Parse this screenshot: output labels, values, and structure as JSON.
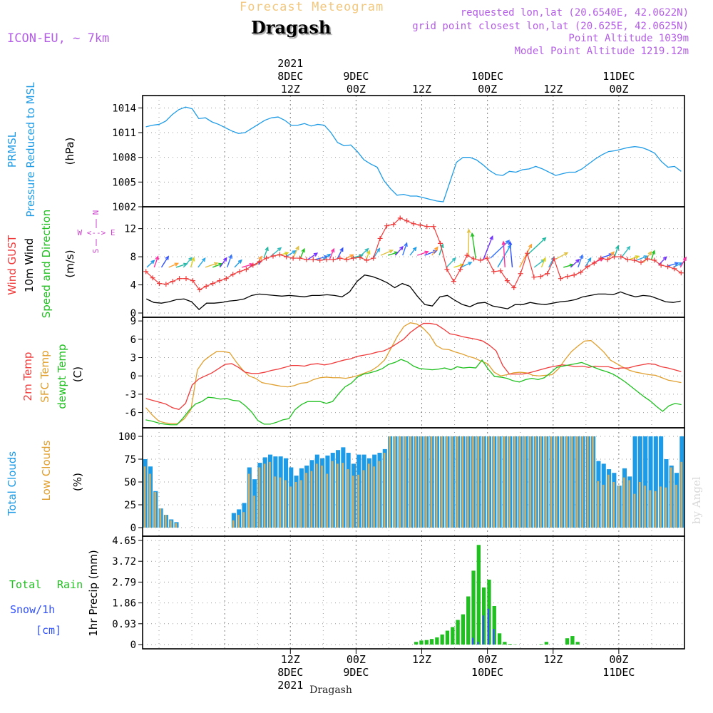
{
  "header": {
    "subtitle": "Forecast Meteogram",
    "title": "Dragash",
    "model": "ICON-EU, ~ 7km",
    "requested": "requested lon,lat (20.6540E, 42.0622N)",
    "grid_point": "grid point closest lon,lat (20.625E, 42.0625N)",
    "point_altitude": "Point Altitude 1039m",
    "model_altitude": "Model Point Altitude 1219.12m",
    "credit": "by Angel",
    "footer_title": "Dragash"
  },
  "colors": {
    "prmsl": "#1e9be6",
    "wind10": "#000000",
    "gust": "#ef3b3b",
    "t2m": "#ef3b3b",
    "sfc": "#e0a030",
    "dew": "#20c020",
    "total_clouds": "#1e9be6",
    "low_clouds": "#d8ad5b",
    "rain": "#20c020",
    "snow": "#3050ff",
    "title": "#f2c77e",
    "meta": "#b45ee6",
    "compass": "#cc44cc"
  },
  "chart_data": {
    "x_range": [
      -15,
      84
    ],
    "time_axis": {
      "unit": "hours from 2021-12-08 00Z",
      "top_ticks": [
        {
          "h": 12,
          "lines": [
            "2021",
            "8DEC",
            "12Z"
          ]
        },
        {
          "h": 24,
          "lines": [
            "9DEC",
            "00Z"
          ]
        },
        {
          "h": 36,
          "lines": [
            "12Z"
          ]
        },
        {
          "h": 48,
          "lines": [
            "10DEC",
            "00Z"
          ]
        },
        {
          "h": 60,
          "lines": [
            "12Z"
          ]
        },
        {
          "h": 72,
          "lines": [
            "11DEC",
            "00Z"
          ]
        }
      ],
      "bottom_ticks": [
        {
          "h": 12,
          "lines": [
            "12Z",
            "8DEC",
            "2021"
          ]
        },
        {
          "h": 24,
          "lines": [
            "00Z",
            "9DEC"
          ]
        },
        {
          "h": 36,
          "lines": [
            "12Z"
          ]
        },
        {
          "h": 48,
          "lines": [
            "00Z",
            "10DEC"
          ]
        },
        {
          "h": 60,
          "lines": [
            "12Z"
          ]
        },
        {
          "h": 72,
          "lines": [
            "00Z",
            "11DEC"
          ]
        }
      ]
    },
    "pressure": {
      "type": "line",
      "labels": [
        "PRMSL",
        "Pressure Reduced to MSL"
      ],
      "unit": "(hPa)",
      "yticks": [
        "1014",
        "1011",
        "1008",
        "1005",
        "1002"
      ],
      "ylim": [
        1002,
        1015.5
      ],
      "series": [
        [
          1011.7,
          1011.9,
          1012.0,
          1012.4,
          1013.2,
          1013.8,
          1014.1,
          1013.9,
          1012.7,
          1012.8,
          1012.3,
          1012.0,
          1011.6,
          1011.2,
          1010.9,
          1011.0,
          1011.5,
          1012.0,
          1012.5,
          1012.8,
          1012.9,
          1012.5,
          1011.9,
          1011.9,
          1012.1,
          1011.8,
          1012.0,
          1011.9,
          1011.0,
          1009.8,
          1009.4,
          1009.5,
          1008.7,
          1007.7,
          1007.2,
          1006.8,
          1005.2,
          1004.2,
          1003.4,
          1003.5,
          1003.3,
          1003.3,
          1003.1,
          1002.9,
          1002.7,
          1002.6,
          1005.0,
          1007.4,
          1008.0,
          1008.0,
          1007.7,
          1007.1,
          1006.4,
          1005.9,
          1005.8,
          1006.3,
          1006.2,
          1006.5,
          1006.6,
          1006.9,
          1006.6,
          1006.2,
          1005.8,
          1006.0,
          1006.2,
          1006.2,
          1006.6,
          1007.2,
          1007.8,
          1008.3,
          1008.7,
          1008.8,
          1009.0,
          1009.2,
          1009.3,
          1009.2,
          1008.9,
          1008.5,
          1007.5,
          1006.8,
          1006.9,
          1006.3
        ]
      ]
    },
    "wind": {
      "type": "line",
      "labels": [
        "Wind GUST",
        "10m Wind",
        "Speed and Direction"
      ],
      "unit": "(m/s)",
      "yticks": [
        "12",
        "8",
        "4",
        "0"
      ],
      "ylim": [
        0,
        14.5
      ],
      "compass": [
        "N",
        "W <--> E",
        "S"
      ],
      "gust": [
        5.9,
        5.0,
        4.2,
        4.1,
        4.5,
        4.9,
        4.9,
        4.6,
        3.3,
        3.8,
        4.2,
        4.6,
        4.9,
        5.5,
        5.9,
        6.2,
        6.8,
        7.3,
        7.8,
        8.1,
        8.3,
        8.0,
        7.8,
        7.8,
        7.6,
        7.6,
        7.5,
        7.6,
        7.6,
        7.8,
        7.6,
        7.8,
        7.9,
        7.5,
        7.8,
        10.6,
        12.4,
        12.6,
        13.5,
        13.1,
        12.7,
        12.5,
        12.3,
        12.3,
        9.9,
        6.2,
        4.5,
        6.2,
        8.2,
        7.7,
        7.5,
        7.8,
        5.9,
        6.0,
        4.6,
        3.6,
        5.6,
        8.5,
        5.1,
        5.2,
        5.6,
        7.7,
        4.9,
        5.2,
        5.4,
        5.8,
        6.6,
        7.1,
        7.8,
        7.6,
        8.0,
        8.0,
        7.6,
        7.5,
        7.2,
        7.7,
        7.5,
        6.8,
        6.6,
        6.3,
        5.7
      ],
      "speed": [
        2.0,
        1.5,
        1.4,
        1.6,
        1.9,
        2.0,
        1.6,
        0.5,
        1.4,
        1.4,
        1.5,
        1.7,
        1.8,
        2.0,
        2.5,
        2.7,
        2.6,
        2.5,
        2.4,
        2.5,
        2.4,
        2.3,
        2.5,
        2.5,
        2.6,
        2.5,
        2.3,
        3.0,
        4.5,
        5.4,
        5.2,
        4.8,
        4.3,
        3.6,
        4.2,
        3.8,
        2.4,
        1.2,
        1.0,
        2.3,
        2.5,
        1.8,
        1.2,
        0.9,
        1.4,
        1.5,
        1.0,
        0.8,
        0.6,
        1.2,
        1.2,
        1.5,
        1.3,
        1.2,
        1.4,
        1.6,
        1.7,
        1.9,
        2.3,
        2.5,
        2.7,
        2.7,
        2.6,
        3.0,
        2.6,
        2.3,
        2.5,
        2.4,
        2.0,
        1.6,
        1.5,
        1.7
      ]
    },
    "temperature": {
      "type": "line",
      "labels": [
        "2m Temp",
        "SFC Temp",
        "dewpt Temp"
      ],
      "unit": "(C)",
      "yticks": [
        "9",
        "6",
        "3",
        "0",
        "-3",
        "-6"
      ],
      "ylim": [
        -8.5,
        9.6
      ],
      "t2m": [
        -3.7,
        -4.0,
        -4.3,
        -4.6,
        -5.2,
        -5.5,
        -4.5,
        -1.5,
        -0.5,
        0.0,
        0.5,
        1.2,
        1.9,
        2.0,
        1.4,
        0.6,
        0.4,
        0.4,
        0.6,
        0.9,
        1.1,
        1.4,
        1.7,
        1.7,
        1.6,
        1.9,
        2.0,
        1.8,
        2.0,
        2.3,
        2.6,
        2.8,
        3.2,
        3.4,
        3.6,
        3.9,
        4.1,
        4.6,
        5.3,
        6.0,
        7.1,
        7.9,
        8.6,
        8.6,
        8.4,
        7.7,
        6.9,
        6.7,
        6.4,
        6.2,
        6.0,
        5.7,
        5.0,
        4.1,
        1.7,
        0.3,
        0.3,
        0.3,
        0.5,
        0.8,
        1.1,
        1.4,
        1.6,
        1.8,
        1.7,
        1.5,
        1.6,
        1.4,
        1.6,
        1.5,
        1.5,
        1.2,
        1.3,
        1.3,
        1.6,
        1.8,
        2.0,
        1.9,
        1.5,
        1.3,
        1.0,
        0.7
      ],
      "sfc": [
        -5.2,
        -6.4,
        -7.4,
        -7.7,
        -7.8,
        -7.8,
        -7.0,
        -5.5,
        1.0,
        2.5,
        3.3,
        4.0,
        4.0,
        3.8,
        2.3,
        1.0,
        0.0,
        -0.4,
        -1.1,
        -1.3,
        -1.5,
        -1.7,
        -1.8,
        -1.6,
        -1.2,
        -1.1,
        -0.6,
        -0.3,
        -0.2,
        -0.3,
        -0.3,
        -0.4,
        -0.2,
        0.1,
        0.5,
        0.9,
        1.6,
        2.6,
        4.5,
        6.5,
        8.1,
        8.7,
        8.5,
        7.8,
        6.7,
        5.0,
        4.4,
        4.3,
        3.9,
        3.6,
        3.2,
        2.9,
        2.4,
        2.0,
        0.6,
        0.0,
        0.2,
        0.5,
        0.6,
        0.5,
        0.1,
        0.0,
        0.1,
        0.2,
        1.2,
        2.7,
        4.0,
        4.9,
        5.7,
        5.8,
        4.9,
        3.9,
        2.6,
        2.0,
        1.4,
        0.9,
        0.6,
        0.4,
        0.2,
        0.1,
        -0.3,
        -0.7,
        -0.9,
        -1.1
      ],
      "dew": [
        -7.2,
        -7.4,
        -7.7,
        -7.9,
        -8.0,
        -8.0,
        -6.9,
        -5.6,
        -4.6,
        -4.2,
        -3.5,
        -3.6,
        -3.8,
        -3.7,
        -4.0,
        -4.1,
        -4.9,
        -5.9,
        -7.3,
        -7.9,
        -7.9,
        -7.6,
        -7.2,
        -7.0,
        -5.5,
        -4.7,
        -4.2,
        -4.2,
        -4.2,
        -4.5,
        -4.2,
        -2.9,
        -1.8,
        -1.2,
        -0.2,
        0.3,
        0.5,
        0.8,
        1.2,
        1.9,
        2.2,
        2.7,
        2.3,
        1.6,
        1.2,
        1.1,
        1.0,
        1.1,
        1.3,
        1.0,
        1.5,
        1.3,
        1.4,
        1.3,
        2.6,
        1.1,
        -0.1,
        -0.2,
        -0.4,
        -0.8,
        -1.0,
        -0.6,
        -0.4,
        -0.6,
        -0.3,
        0.5,
        1.4,
        1.6,
        1.8,
        2.0,
        2.2,
        1.8,
        1.4,
        1.0,
        0.7,
        0.3,
        -0.3,
        -1.0,
        -1.8,
        -2.6,
        -3.4,
        -4.1,
        -5.0,
        -5.8,
        -4.9,
        -4.5,
        -4.7
      ]
    },
    "clouds": {
      "type": "bar",
      "labels": [
        "Total Clouds",
        "Low Clouds"
      ],
      "unit": "(%)",
      "yticks": [
        "100",
        "75",
        "50",
        "25",
        "0"
      ],
      "ylim": [
        0,
        100
      ],
      "total": [
        75,
        67,
        40,
        21,
        14,
        9,
        6,
        0,
        0,
        0,
        0,
        0,
        0,
        0,
        0,
        0,
        0,
        16,
        20,
        27,
        66,
        53,
        71,
        77,
        80,
        78,
        78,
        76,
        66,
        57,
        65,
        68,
        74,
        80,
        76,
        79,
        82,
        85,
        88,
        82,
        70,
        80,
        80,
        76,
        80,
        82,
        86,
        100,
        100,
        100,
        100,
        100,
        100,
        100,
        100,
        100,
        100,
        100,
        100,
        100,
        100,
        100,
        100,
        100,
        100,
        100,
        100,
        100,
        100,
        100,
        100,
        100,
        100,
        100,
        100,
        100,
        100,
        100,
        100,
        100,
        100,
        100,
        100,
        100,
        100,
        100,
        100,
        73,
        70,
        64,
        60,
        46,
        65,
        56,
        100,
        100,
        100,
        100,
        100,
        100,
        75,
        68,
        60,
        100
      ],
      "low": [
        67,
        59,
        39,
        21,
        14,
        8,
        5,
        0,
        0,
        0,
        0,
        0,
        0,
        0,
        0,
        0,
        0,
        8,
        14,
        17,
        59,
        35,
        66,
        70,
        72,
        56,
        55,
        52,
        45,
        50,
        52,
        60,
        62,
        70,
        68,
        59,
        73,
        70,
        71,
        64,
        57,
        58,
        63,
        70,
        67,
        73,
        82,
        100,
        100,
        100,
        100,
        100,
        100,
        100,
        100,
        100,
        100,
        100,
        100,
        100,
        100,
        100,
        100,
        100,
        100,
        100,
        100,
        100,
        100,
        100,
        100,
        100,
        100,
        100,
        100,
        100,
        100,
        100,
        100,
        100,
        100,
        100,
        100,
        100,
        100,
        100,
        100,
        51,
        47,
        58,
        50,
        46,
        55,
        52,
        37,
        50,
        46,
        41,
        40,
        45,
        44,
        66,
        47,
        72
      ]
    },
    "precip": {
      "type": "bar",
      "labels": [
        "Total",
        "Rain",
        "Snow/1h",
        "[cm]"
      ],
      "axis_label": "1hr Precip (mm)",
      "yticks": [
        "4.65",
        "3.72",
        "2.79",
        "1.86",
        "0.93",
        "0"
      ],
      "ylim": [
        0,
        4.65
      ],
      "rain": [
        0,
        0,
        0,
        0,
        0,
        0,
        0,
        0,
        0,
        0,
        0,
        0,
        0,
        0,
        0,
        0,
        0,
        0,
        0,
        0,
        0,
        0,
        0,
        0,
        0,
        0,
        0,
        0,
        0,
        0,
        0,
        0,
        0,
        0,
        0,
        0,
        0,
        0,
        0,
        0,
        0,
        0,
        0,
        0,
        0,
        0,
        0,
        0,
        0,
        0,
        0,
        0,
        0.12,
        0.18,
        0.2,
        0.25,
        0.32,
        0.45,
        0.62,
        0.78,
        1.1,
        1.35,
        2.15,
        3.3,
        4.45,
        2.55,
        2.9,
        1.72,
        0.5,
        0.12,
        0.03,
        0.01,
        0,
        0,
        0,
        0,
        0.02,
        0.12,
        0,
        0,
        0,
        0.28,
        0.38,
        0.12,
        0,
        0,
        0,
        0,
        0,
        0,
        0,
        0,
        0,
        0,
        0,
        0,
        0,
        0,
        0,
        0,
        0,
        0,
        0,
        0
      ],
      "snow": [
        0,
        0,
        0,
        0,
        0,
        0,
        0,
        0,
        0,
        0,
        0,
        0,
        0,
        0,
        0,
        0,
        0,
        0,
        0,
        0,
        0,
        0,
        0,
        0,
        0,
        0,
        0,
        0,
        0,
        0,
        0,
        0,
        0,
        0,
        0,
        0,
        0,
        0,
        0,
        0,
        0,
        0,
        0,
        0,
        0,
        0,
        0,
        0,
        0,
        0,
        0,
        0,
        0,
        0,
        0,
        0,
        0,
        0,
        0,
        0,
        0,
        0,
        0,
        0.3,
        0.12,
        1.3,
        1.6,
        0.7,
        0,
        0,
        0,
        0,
        0,
        0,
        0,
        0,
        0,
        0,
        0,
        0,
        0,
        0,
        0,
        0,
        0,
        0,
        0,
        0,
        0,
        0,
        0,
        0,
        0,
        0,
        0,
        0,
        0,
        0,
        0,
        0,
        0,
        0,
        0,
        0
      ]
    }
  }
}
